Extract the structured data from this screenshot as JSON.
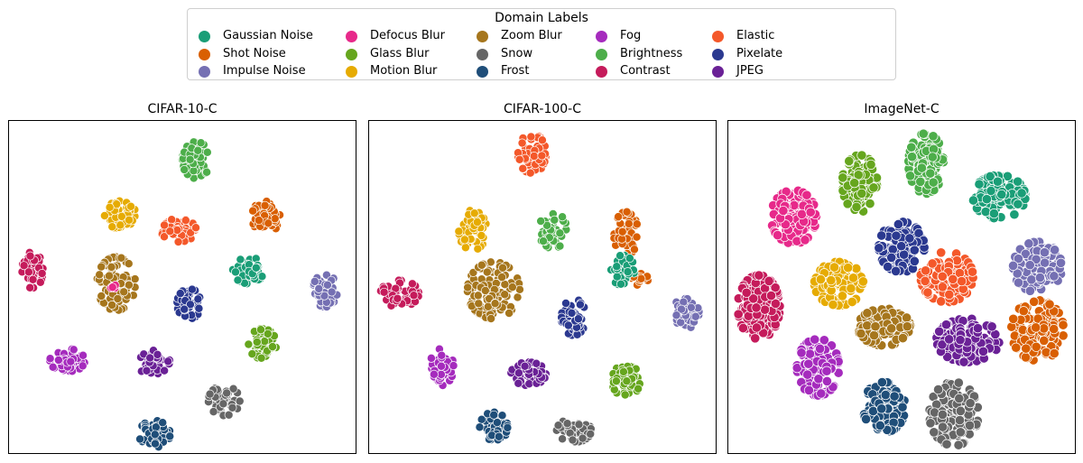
{
  "legend": {
    "title": "Domain Labels",
    "entries": [
      {
        "label": "Gaussian Noise",
        "color": "#1a9e77"
      },
      {
        "label": "Shot Noise",
        "color": "#d95f02"
      },
      {
        "label": "Impulse Noise",
        "color": "#7570b3"
      },
      {
        "label": "Defocus Blur",
        "color": "#e7298a"
      },
      {
        "label": "Glass Blur",
        "color": "#66a61e"
      },
      {
        "label": "Motion Blur",
        "color": "#e6ab02"
      },
      {
        "label": "Zoom Blur",
        "color": "#a6761d"
      },
      {
        "label": "Snow",
        "color": "#666666"
      },
      {
        "label": "Frost",
        "color": "#1f4e79"
      },
      {
        "label": "Fog",
        "color": "#a52bbd"
      },
      {
        "label": "Brightness",
        "color": "#4dae4a"
      },
      {
        "label": "Contrast",
        "color": "#c51b5b"
      },
      {
        "label": "Elastic",
        "color": "#f4582a"
      },
      {
        "label": "Pixelate",
        "color": "#2b3990"
      },
      {
        "label": "JPEG",
        "color": "#6a2196"
      }
    ]
  },
  "chart_data": [
    {
      "type": "scatter",
      "title": "CIFAR-10-C",
      "clusters": [
        {
          "name": "Brightness",
          "cx": 0.54,
          "cy": 0.12,
          "rx": 0.04,
          "ry": 0.055,
          "n": 55
        },
        {
          "name": "Motion Blur",
          "cx": 0.32,
          "cy": 0.28,
          "rx": 0.045,
          "ry": 0.045,
          "n": 50
        },
        {
          "name": "Shot Noise",
          "cx": 0.74,
          "cy": 0.29,
          "rx": 0.04,
          "ry": 0.05,
          "n": 55
        },
        {
          "name": "Elastic",
          "cx": 0.49,
          "cy": 0.33,
          "rx": 0.05,
          "ry": 0.035,
          "n": 50
        },
        {
          "name": "Contrast",
          "cx": 0.07,
          "cy": 0.45,
          "rx": 0.03,
          "ry": 0.055,
          "n": 45
        },
        {
          "name": "Zoom Blur",
          "cx": 0.31,
          "cy": 0.49,
          "rx": 0.055,
          "ry": 0.08,
          "n": 95
        },
        {
          "name": "Defocus Blur",
          "cx": 0.3,
          "cy": 0.5,
          "rx": 0.015,
          "ry": 0.015,
          "n": 6
        },
        {
          "name": "Gaussian Noise",
          "cx": 0.69,
          "cy": 0.45,
          "rx": 0.045,
          "ry": 0.04,
          "n": 55
        },
        {
          "name": "Impulse Noise",
          "cx": 0.91,
          "cy": 0.51,
          "rx": 0.035,
          "ry": 0.05,
          "n": 50
        },
        {
          "name": "Pixelate",
          "cx": 0.52,
          "cy": 0.55,
          "rx": 0.035,
          "ry": 0.045,
          "n": 50
        },
        {
          "name": "Glass Blur",
          "cx": 0.73,
          "cy": 0.67,
          "rx": 0.04,
          "ry": 0.045,
          "n": 50
        },
        {
          "name": "Fog",
          "cx": 0.17,
          "cy": 0.72,
          "rx": 0.05,
          "ry": 0.035,
          "n": 50
        },
        {
          "name": "JPEG",
          "cx": 0.42,
          "cy": 0.73,
          "rx": 0.045,
          "ry": 0.04,
          "n": 50
        },
        {
          "name": "Snow",
          "cx": 0.62,
          "cy": 0.84,
          "rx": 0.045,
          "ry": 0.045,
          "n": 50
        },
        {
          "name": "Frost",
          "cx": 0.42,
          "cy": 0.94,
          "rx": 0.045,
          "ry": 0.04,
          "n": 50
        }
      ]
    },
    {
      "type": "scatter",
      "title": "CIFAR-100-C",
      "clusters": [
        {
          "name": "Elastic",
          "cx": 0.47,
          "cy": 0.1,
          "rx": 0.04,
          "ry": 0.06,
          "n": 55
        },
        {
          "name": "Motion Blur",
          "cx": 0.3,
          "cy": 0.33,
          "rx": 0.04,
          "ry": 0.06,
          "n": 55
        },
        {
          "name": "Brightness",
          "cx": 0.53,
          "cy": 0.33,
          "rx": 0.04,
          "ry": 0.055,
          "n": 50
        },
        {
          "name": "Shot Noise",
          "cx": 0.74,
          "cy": 0.34,
          "rx": 0.035,
          "ry": 0.065,
          "n": 50
        },
        {
          "name": "Shot Noise",
          "cx": 0.78,
          "cy": 0.47,
          "rx": 0.025,
          "ry": 0.025,
          "n": 14
        },
        {
          "name": "Gaussian Noise",
          "cx": 0.73,
          "cy": 0.45,
          "rx": 0.035,
          "ry": 0.045,
          "n": 45
        },
        {
          "name": "Zoom Blur",
          "cx": 0.36,
          "cy": 0.51,
          "rx": 0.075,
          "ry": 0.085,
          "n": 120
        },
        {
          "name": "Contrast",
          "cx": 0.09,
          "cy": 0.52,
          "rx": 0.055,
          "ry": 0.04,
          "n": 55
        },
        {
          "name": "Impulse Noise",
          "cx": 0.91,
          "cy": 0.58,
          "rx": 0.04,
          "ry": 0.045,
          "n": 50
        },
        {
          "name": "Pixelate",
          "cx": 0.59,
          "cy": 0.59,
          "rx": 0.035,
          "ry": 0.055,
          "n": 50
        },
        {
          "name": "Fog",
          "cx": 0.21,
          "cy": 0.74,
          "rx": 0.035,
          "ry": 0.055,
          "n": 50
        },
        {
          "name": "JPEG",
          "cx": 0.46,
          "cy": 0.76,
          "rx": 0.05,
          "ry": 0.035,
          "n": 50
        },
        {
          "name": "Glass Blur",
          "cx": 0.74,
          "cy": 0.78,
          "rx": 0.04,
          "ry": 0.05,
          "n": 50
        },
        {
          "name": "Frost",
          "cx": 0.36,
          "cy": 0.92,
          "rx": 0.04,
          "ry": 0.045,
          "n": 50
        },
        {
          "name": "Snow",
          "cx": 0.59,
          "cy": 0.93,
          "rx": 0.05,
          "ry": 0.035,
          "n": 50
        }
      ]
    },
    {
      "type": "scatter",
      "title": "ImageNet-C",
      "clusters": [
        {
          "name": "Brightness",
          "cx": 0.57,
          "cy": 0.13,
          "rx": 0.05,
          "ry": 0.09,
          "n": 110
        },
        {
          "name": "Glass Blur",
          "cx": 0.38,
          "cy": 0.19,
          "rx": 0.05,
          "ry": 0.085,
          "n": 110
        },
        {
          "name": "Gaussian Noise",
          "cx": 0.78,
          "cy": 0.23,
          "rx": 0.075,
          "ry": 0.065,
          "n": 120
        },
        {
          "name": "Defocus Blur",
          "cx": 0.19,
          "cy": 0.29,
          "rx": 0.065,
          "ry": 0.08,
          "n": 120
        },
        {
          "name": "Pixelate",
          "cx": 0.5,
          "cy": 0.38,
          "rx": 0.065,
          "ry": 0.075,
          "n": 120
        },
        {
          "name": "Impulse Noise",
          "cx": 0.89,
          "cy": 0.44,
          "rx": 0.07,
          "ry": 0.075,
          "n": 120
        },
        {
          "name": "Elastic",
          "cx": 0.63,
          "cy": 0.47,
          "rx": 0.075,
          "ry": 0.075,
          "n": 120
        },
        {
          "name": "Motion Blur",
          "cx": 0.32,
          "cy": 0.49,
          "rx": 0.07,
          "ry": 0.065,
          "n": 110
        },
        {
          "name": "Contrast",
          "cx": 0.09,
          "cy": 0.56,
          "rx": 0.06,
          "ry": 0.095,
          "n": 140
        },
        {
          "name": "Zoom Blur",
          "cx": 0.45,
          "cy": 0.62,
          "rx": 0.075,
          "ry": 0.055,
          "n": 110
        },
        {
          "name": "JPEG",
          "cx": 0.69,
          "cy": 0.66,
          "rx": 0.09,
          "ry": 0.065,
          "n": 130
        },
        {
          "name": "Shot Noise",
          "cx": 0.89,
          "cy": 0.63,
          "rx": 0.075,
          "ry": 0.09,
          "n": 130
        },
        {
          "name": "Fog",
          "cx": 0.26,
          "cy": 0.74,
          "rx": 0.06,
          "ry": 0.085,
          "n": 120
        },
        {
          "name": "Frost",
          "cx": 0.45,
          "cy": 0.86,
          "rx": 0.06,
          "ry": 0.075,
          "n": 100
        },
        {
          "name": "Snow",
          "cx": 0.65,
          "cy": 0.88,
          "rx": 0.07,
          "ry": 0.095,
          "n": 120
        }
      ]
    }
  ]
}
